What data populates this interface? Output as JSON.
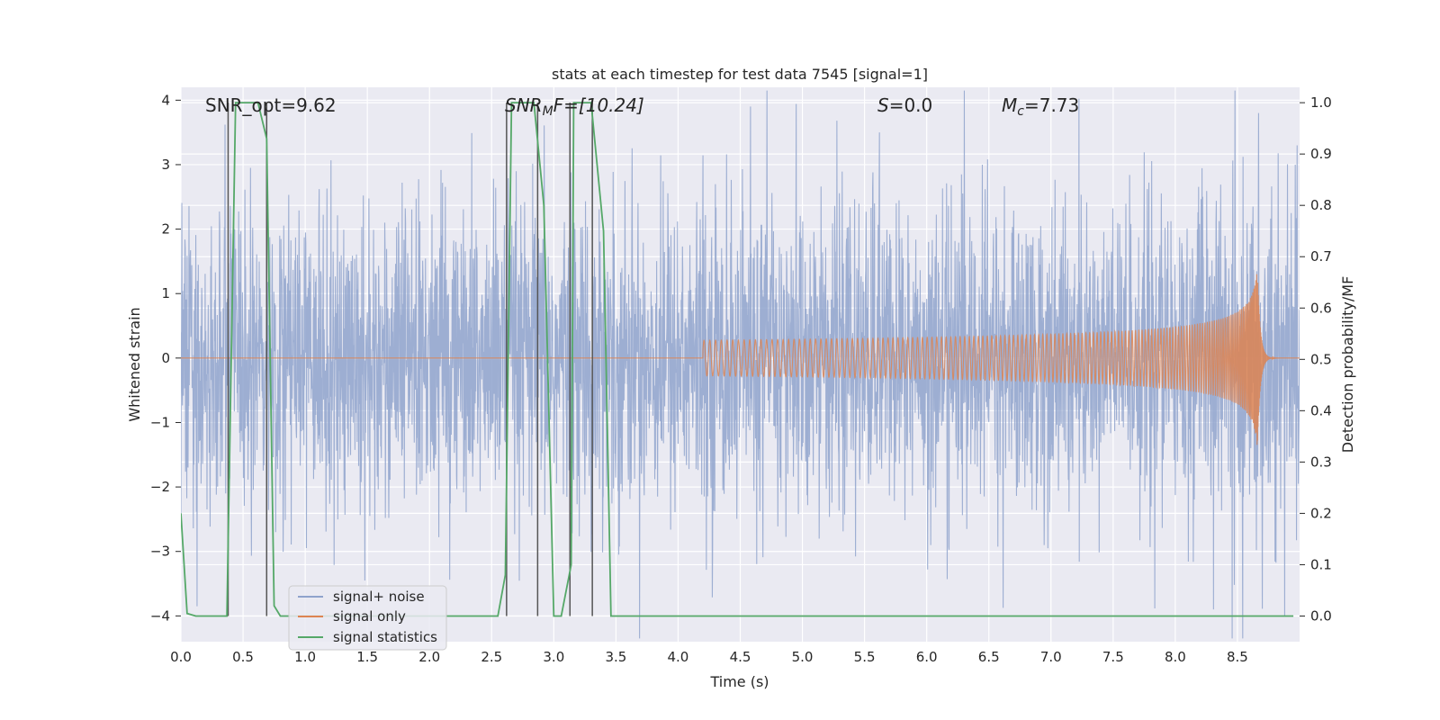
{
  "chart_data": {
    "type": "line",
    "title": "stats at each timestep for test data 7545 [signal=1]",
    "xlabel": "Time (s)",
    "ylabel_left": "Whitened strain",
    "ylabel_right": "Detection probability/MF",
    "xlim": [
      0.0,
      9.0
    ],
    "ylim_left": [
      -4.4,
      4.2
    ],
    "ylim_right": [
      -0.05,
      1.03
    ],
    "xticks": [
      "0.0",
      "0.5",
      "1.0",
      "1.5",
      "2.0",
      "2.5",
      "3.0",
      "3.5",
      "4.0",
      "4.5",
      "5.0",
      "5.5",
      "6.0",
      "6.5",
      "7.0",
      "7.5",
      "8.0",
      "8.5"
    ],
    "yticks_left": [
      "4",
      "3",
      "2",
      "1",
      "0",
      "−1",
      "−2",
      "−3",
      "−4"
    ],
    "yticks_right": [
      "1.0",
      "0.9",
      "0.8",
      "0.7",
      "0.6",
      "0.5",
      "0.4",
      "0.3",
      "0.2",
      "0.1",
      "0.0"
    ],
    "grid": true,
    "legend_position": "lower-left",
    "annotations": {
      "snr_opt": "SNR_opt=9.62",
      "snr_mf_prefix": "SNR",
      "snr_mf_sub": "M",
      "snr_mf_suffix": "F=[10.24]",
      "s_label": "S",
      "s_value": "=0.0",
      "mc_label": "M",
      "mc_sub": "c",
      "mc_value": "=7.73"
    },
    "series": [
      {
        "name": "signal+ noise",
        "color": "#8fa3cc",
        "noise_sigma": 1.0,
        "duration": 9.0,
        "note_peaks": [
          [
            0.13,
            -3.85
          ],
          [
            1.48,
            -3.45
          ],
          [
            8.88,
            -4.0
          ],
          [
            5.62,
            3.5
          ],
          [
            8.67,
            3.8
          ],
          [
            8.98,
            3.3
          ]
        ]
      },
      {
        "name": "signal only",
        "color": "#dd8452",
        "merger_time": 8.66,
        "merger_peak": 1.4,
        "chirp_mass": 7.73
      },
      {
        "name": "signal statistics",
        "color": "#55a868",
        "axis": "right",
        "x": [
          0.0,
          0.05,
          0.12,
          0.3,
          0.37,
          0.44,
          0.62,
          0.69,
          0.75,
          0.8,
          1.0,
          2.55,
          2.61,
          2.66,
          2.84,
          2.92,
          3.0,
          3.06,
          3.14,
          3.16,
          3.3,
          3.4,
          3.46,
          3.6,
          8.95
        ],
        "values": [
          0.2,
          0.005,
          0.0,
          0.0,
          0.0,
          1.0,
          1.0,
          0.93,
          0.02,
          0.0,
          0.0,
          0.0,
          0.08,
          1.0,
          1.0,
          0.8,
          0.0,
          0.0,
          0.1,
          1.0,
          1.0,
          0.75,
          0.0,
          0.0,
          0.0
        ]
      }
    ],
    "vlines": [
      0.38,
      0.69,
      2.62,
      2.87,
      3.13,
      3.31
    ],
    "vline_color": "#555555"
  }
}
